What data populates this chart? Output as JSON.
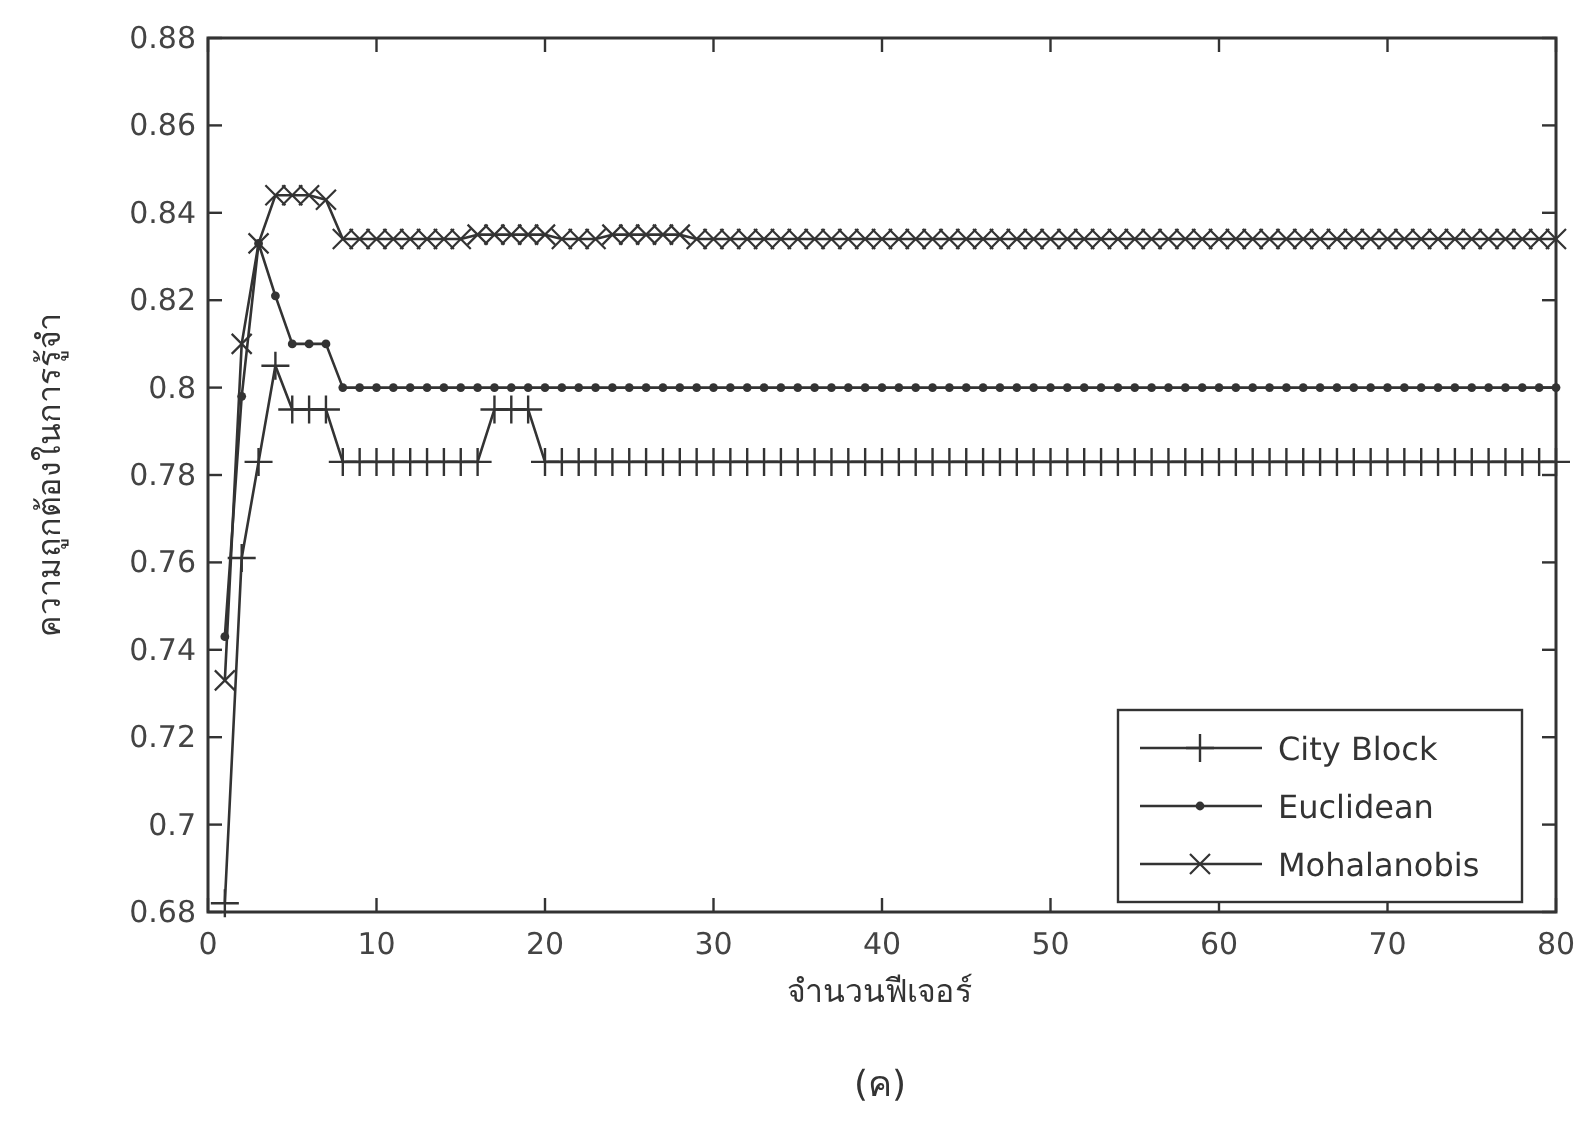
{
  "chart_data": {
    "type": "line",
    "xlabel": "จำนวนฟีเจอร์",
    "ylabel": "ความถูกต้องในการรู้จำ",
    "annotations": [
      "(ค)"
    ],
    "x": [
      1,
      2,
      3,
      4,
      5,
      6,
      7,
      8,
      9,
      10,
      11,
      12,
      13,
      14,
      15,
      16,
      17,
      18,
      19,
      20,
      21,
      22,
      23,
      24,
      25,
      26,
      27,
      28,
      29,
      30,
      31,
      32,
      33,
      34,
      35,
      36,
      37,
      38,
      39,
      40,
      41,
      42,
      43,
      44,
      45,
      46,
      47,
      48,
      49,
      50,
      51,
      52,
      53,
      54,
      55,
      56,
      57,
      58,
      59,
      60,
      61,
      62,
      63,
      64,
      65,
      66,
      67,
      68,
      69,
      70,
      71,
      72,
      73,
      74,
      75,
      76,
      77,
      78,
      79,
      80
    ],
    "xlim": [
      0,
      80
    ],
    "xticks": [
      0,
      10,
      20,
      30,
      40,
      50,
      60,
      70,
      80
    ],
    "ylim": [
      0.68,
      0.88
    ],
    "yticks": [
      0.68,
      0.7,
      0.72,
      0.74,
      0.76,
      0.78,
      0.8,
      0.82,
      0.84,
      0.86,
      0.88
    ],
    "grid": false,
    "legend": "bottom right",
    "line_style": "solid",
    "series": [
      {
        "name": "City Block",
        "color": "#333333",
        "marker": "plus",
        "values": [
          0.682,
          0.761,
          0.783,
          0.805,
          0.795,
          0.795,
          0.795,
          0.783,
          0.783,
          0.783,
          0.783,
          0.783,
          0.783,
          0.783,
          0.783,
          0.783,
          0.795,
          0.795,
          0.795,
          0.783,
          0.783,
          0.783,
          0.783,
          0.783,
          0.783,
          0.783,
          0.783,
          0.783,
          0.783,
          0.783,
          0.783,
          0.783,
          0.783,
          0.783,
          0.783,
          0.783,
          0.783,
          0.783,
          0.783,
          0.783,
          0.783,
          0.783,
          0.783,
          0.783,
          0.783,
          0.783,
          0.783,
          0.783,
          0.783,
          0.783,
          0.783,
          0.783,
          0.783,
          0.783,
          0.783,
          0.783,
          0.783,
          0.783,
          0.783,
          0.783,
          0.783,
          0.783,
          0.783,
          0.783,
          0.783,
          0.783,
          0.783,
          0.783,
          0.783,
          0.783,
          0.783,
          0.783,
          0.783,
          0.783,
          0.783,
          0.783,
          0.783,
          0.783,
          0.783,
          0.783
        ]
      },
      {
        "name": "Euclidean",
        "color": "#333333",
        "marker": "circle",
        "values": [
          0.743,
          0.798,
          0.833,
          0.821,
          0.81,
          0.81,
          0.81,
          0.8,
          0.8,
          0.8,
          0.8,
          0.8,
          0.8,
          0.8,
          0.8,
          0.8,
          0.8,
          0.8,
          0.8,
          0.8,
          0.8,
          0.8,
          0.8,
          0.8,
          0.8,
          0.8,
          0.8,
          0.8,
          0.8,
          0.8,
          0.8,
          0.8,
          0.8,
          0.8,
          0.8,
          0.8,
          0.8,
          0.8,
          0.8,
          0.8,
          0.8,
          0.8,
          0.8,
          0.8,
          0.8,
          0.8,
          0.8,
          0.8,
          0.8,
          0.8,
          0.8,
          0.8,
          0.8,
          0.8,
          0.8,
          0.8,
          0.8,
          0.8,
          0.8,
          0.8,
          0.8,
          0.8,
          0.8,
          0.8,
          0.8,
          0.8,
          0.8,
          0.8,
          0.8,
          0.8,
          0.8,
          0.8,
          0.8,
          0.8,
          0.8,
          0.8,
          0.8,
          0.8,
          0.8,
          0.8
        ]
      },
      {
        "name": "Mohalanobis",
        "color": "#333333",
        "marker": "cross",
        "values": [
          0.733,
          0.81,
          0.833,
          0.844,
          0.844,
          0.844,
          0.843,
          0.834,
          0.834,
          0.834,
          0.834,
          0.834,
          0.834,
          0.834,
          0.834,
          0.835,
          0.835,
          0.835,
          0.835,
          0.835,
          0.834,
          0.834,
          0.834,
          0.835,
          0.835,
          0.835,
          0.835,
          0.835,
          0.834,
          0.834,
          0.834,
          0.834,
          0.834,
          0.834,
          0.834,
          0.834,
          0.834,
          0.834,
          0.834,
          0.834,
          0.834,
          0.834,
          0.834,
          0.834,
          0.834,
          0.834,
          0.834,
          0.834,
          0.834,
          0.834,
          0.834,
          0.834,
          0.834,
          0.834,
          0.834,
          0.834,
          0.834,
          0.834,
          0.834,
          0.834,
          0.834,
          0.834,
          0.834,
          0.834,
          0.834,
          0.834,
          0.834,
          0.834,
          0.834,
          0.834,
          0.834,
          0.834,
          0.834,
          0.834,
          0.834,
          0.834,
          0.834,
          0.834,
          0.834,
          0.834
        ]
      }
    ]
  }
}
